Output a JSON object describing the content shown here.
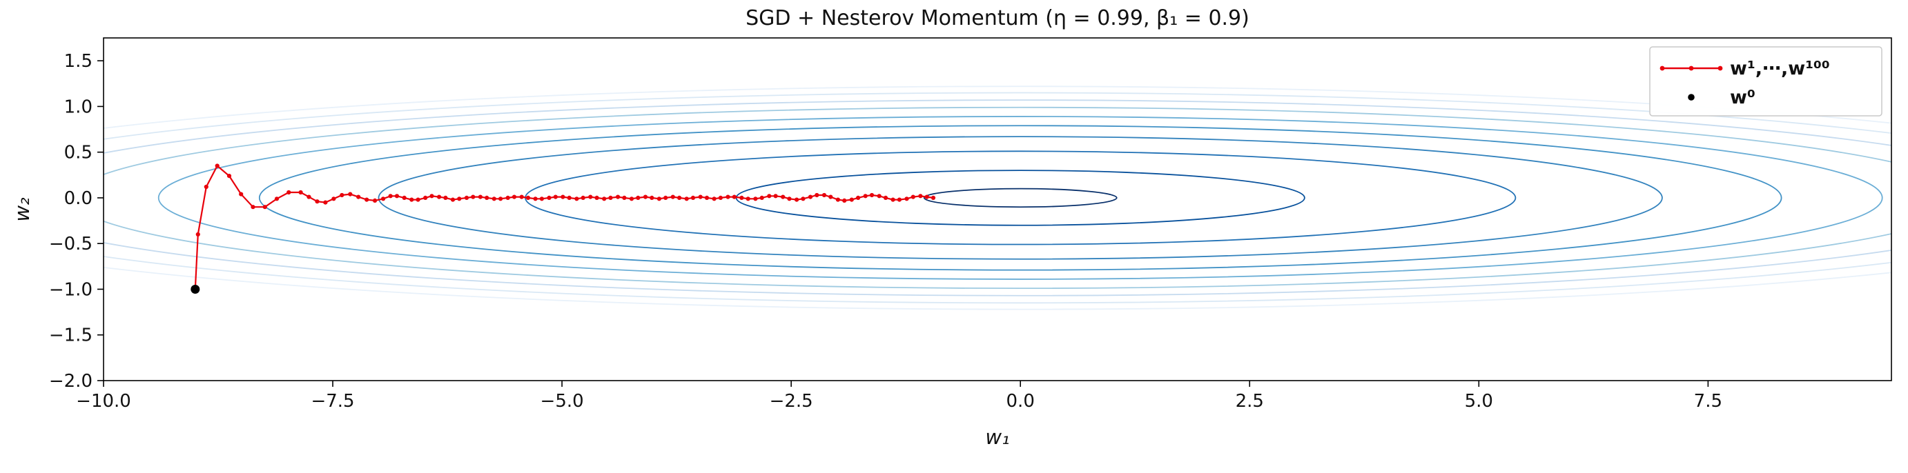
{
  "chart_data": {
    "type": "line",
    "title": "SGD + Nesterov Momentum (η = 0.99, β₁ = 0.9)",
    "xlabel": "w₁",
    "ylabel": "w₂",
    "xlim": [
      -10.0,
      9.5
    ],
    "ylim": [
      -2.0,
      1.75
    ],
    "xticks": [
      -10.0,
      -7.5,
      -5.0,
      -2.5,
      0.0,
      2.5,
      5.0,
      7.5
    ],
    "yticks": [
      -2.0,
      -1.5,
      -1.0,
      -0.5,
      0.0,
      0.5,
      1.0,
      1.5
    ],
    "grid": false,
    "background": "#ffffff",
    "axes_color": "#000000",
    "legend": {
      "position": "upper right",
      "entries": [
        {
          "label": "w¹,⋯,w¹⁰⁰",
          "style": "line+markers",
          "color": "#e8000b"
        },
        {
          "label": "w⁰",
          "style": "marker",
          "color": "#000000"
        }
      ]
    },
    "start_point": {
      "name": "w0",
      "color": "#000000",
      "point": [
        -9.0,
        -1.0
      ]
    },
    "trajectory": {
      "name": "w1..w100",
      "label": "w¹,⋯,w¹⁰⁰",
      "color": "#e8000b",
      "marker": "dot",
      "n_points": 100,
      "points": [
        [
          -8.97,
          -0.4
        ],
        [
          -8.88,
          0.12
        ],
        [
          -8.76,
          0.35
        ],
        [
          -8.63,
          0.24
        ],
        [
          -8.5,
          0.04
        ],
        [
          -8.37,
          -0.1
        ],
        [
          -8.24,
          -0.1
        ],
        [
          -8.11,
          -0.01
        ],
        [
          -7.98,
          0.06
        ],
        [
          -7.85,
          0.06
        ],
        [
          -7.76,
          0.01
        ],
        [
          -7.67,
          -0.04
        ],
        [
          -7.58,
          -0.05
        ],
        [
          -7.49,
          -0.01
        ],
        [
          -7.4,
          0.03
        ],
        [
          -7.31,
          0.04
        ],
        [
          -7.22,
          0.01
        ],
        [
          -7.13,
          -0.02
        ],
        [
          -7.04,
          -0.03
        ],
        [
          -6.95,
          -0.01
        ],
        [
          -6.87,
          0.02
        ],
        [
          -6.8,
          0.02
        ],
        [
          -6.72,
          0.0
        ],
        [
          -6.64,
          -0.02
        ],
        [
          -6.57,
          -0.02
        ],
        [
          -6.49,
          0.0
        ],
        [
          -6.42,
          0.02
        ],
        [
          -6.34,
          0.01
        ],
        [
          -6.27,
          0.0
        ],
        [
          -6.19,
          -0.02
        ],
        [
          -6.12,
          -0.01
        ],
        [
          -6.04,
          0.0
        ],
        [
          -5.97,
          0.01
        ],
        [
          -5.89,
          0.01
        ],
        [
          -5.82,
          0.0
        ],
        [
          -5.74,
          -0.01
        ],
        [
          -5.67,
          -0.01
        ],
        [
          -5.59,
          0.0
        ],
        [
          -5.52,
          0.01
        ],
        [
          -5.44,
          0.01
        ],
        [
          -5.37,
          0.0
        ],
        [
          -5.29,
          -0.01
        ],
        [
          -5.22,
          -0.01
        ],
        [
          -5.14,
          0.0
        ],
        [
          -5.07,
          0.01
        ],
        [
          -4.99,
          0.01
        ],
        [
          -4.92,
          0.0
        ],
        [
          -4.84,
          -0.01
        ],
        [
          -4.77,
          0.0
        ],
        [
          -4.69,
          0.01
        ],
        [
          -4.62,
          0.0
        ],
        [
          -4.54,
          -0.01
        ],
        [
          -4.47,
          0.0
        ],
        [
          -4.39,
          0.01
        ],
        [
          -4.32,
          0.0
        ],
        [
          -4.24,
          -0.01
        ],
        [
          -4.17,
          0.0
        ],
        [
          -4.09,
          0.01
        ],
        [
          -4.02,
          0.0
        ],
        [
          -3.94,
          -0.01
        ],
        [
          -3.87,
          0.0
        ],
        [
          -3.79,
          0.01
        ],
        [
          -3.72,
          0.0
        ],
        [
          -3.64,
          -0.01
        ],
        [
          -3.57,
          0.0
        ],
        [
          -3.49,
          0.01
        ],
        [
          -3.42,
          0.0
        ],
        [
          -3.34,
          -0.01
        ],
        [
          -3.27,
          0.0
        ],
        [
          -3.19,
          0.01
        ],
        [
          -3.12,
          0.01
        ],
        [
          -3.04,
          0.0
        ],
        [
          -2.97,
          -0.01
        ],
        [
          -2.89,
          -0.01
        ],
        [
          -2.82,
          0.0
        ],
        [
          -2.74,
          0.02
        ],
        [
          -2.67,
          0.02
        ],
        [
          -2.59,
          0.01
        ],
        [
          -2.52,
          -0.01
        ],
        [
          -2.44,
          -0.02
        ],
        [
          -2.37,
          -0.01
        ],
        [
          -2.29,
          0.01
        ],
        [
          -2.22,
          0.03
        ],
        [
          -2.14,
          0.03
        ],
        [
          -2.07,
          0.01
        ],
        [
          -1.99,
          -0.02
        ],
        [
          -1.92,
          -0.03
        ],
        [
          -1.84,
          -0.02
        ],
        [
          -1.77,
          0.0
        ],
        [
          -1.69,
          0.02
        ],
        [
          -1.62,
          0.03
        ],
        [
          -1.54,
          0.02
        ],
        [
          -1.47,
          0.0
        ],
        [
          -1.39,
          -0.02
        ],
        [
          -1.32,
          -0.02
        ],
        [
          -1.24,
          -0.01
        ],
        [
          -1.17,
          0.01
        ],
        [
          -1.09,
          0.02
        ],
        [
          -1.02,
          0.01
        ],
        [
          -0.95,
          0.0
        ]
      ]
    },
    "contours": {
      "center": [
        0.0,
        0.0
      ],
      "stroke_width": 1.8,
      "levels": [
        {
          "rx": 1.05,
          "ry": 0.1,
          "color": "#08306b"
        },
        {
          "rx": 3.1,
          "ry": 0.3,
          "color": "#08519c"
        },
        {
          "rx": 5.4,
          "ry": 0.51,
          "color": "#2171b5"
        },
        {
          "rx": 7.0,
          "ry": 0.67,
          "color": "#3282bd"
        },
        {
          "rx": 8.3,
          "ry": 0.79,
          "color": "#4292c6"
        },
        {
          "rx": 9.4,
          "ry": 0.89,
          "color": "#6baed6"
        },
        {
          "rx": 10.35,
          "ry": 0.99,
          "color": "#9ecae1"
        },
        {
          "rx": 11.25,
          "ry": 1.07,
          "color": "#c6dbef"
        },
        {
          "rx": 12.05,
          "ry": 1.15,
          "color": "#d9e8f5"
        },
        {
          "rx": 12.8,
          "ry": 1.22,
          "color": "#e8f1fa"
        }
      ]
    }
  }
}
